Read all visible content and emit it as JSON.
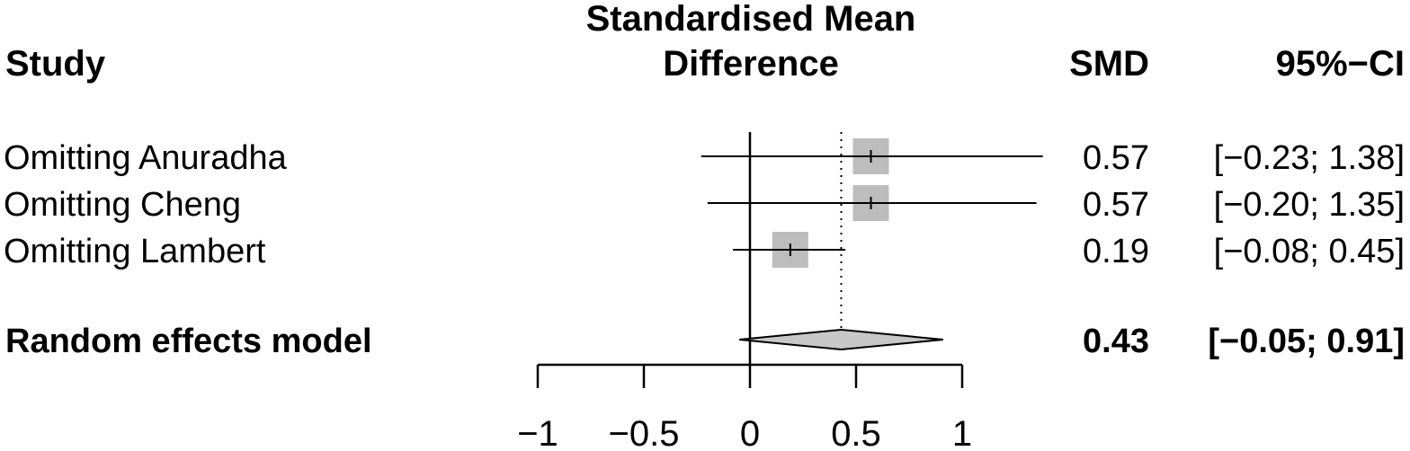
{
  "chart_data": {
    "type": "forest",
    "title": "Standardised Mean Difference",
    "title_lines": [
      "Standardised Mean",
      "Difference"
    ],
    "columns": {
      "study": "Study",
      "effect": "SMD",
      "ci": "95%−CI"
    },
    "studies": [
      {
        "label": "Omitting Anuradha",
        "smd": 0.57,
        "lower": -0.23,
        "upper": 1.38,
        "weight": 1.0,
        "smd_text": "0.57",
        "ci_text": "[−0.23; 1.38]"
      },
      {
        "label": "Omitting Cheng",
        "smd": 0.57,
        "lower": -0.2,
        "upper": 1.35,
        "weight": 1.0,
        "smd_text": "0.57",
        "ci_text": "[−0.20; 1.35]"
      },
      {
        "label": "Omitting Lambert",
        "smd": 0.19,
        "lower": -0.08,
        "upper": 0.45,
        "weight": 1.0,
        "smd_text": "0.19",
        "ci_text": "[−0.08; 0.45]"
      }
    ],
    "pooled": {
      "label": "Random effects model",
      "smd": 0.43,
      "lower": -0.05,
      "upper": 0.91,
      "smd_text": "0.43",
      "ci_text": "[−0.05; 0.91]"
    },
    "xlim": [
      -1,
      1
    ],
    "xticks": [
      -1,
      -0.5,
      0,
      0.5,
      1
    ],
    "xtick_labels": [
      "−1",
      "−0.5",
      "0",
      "0.5",
      "1"
    ],
    "null_line": 0,
    "pooled_line": 0.43
  }
}
